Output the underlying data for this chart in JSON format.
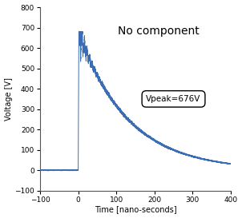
{
  "title": "No component",
  "xlabel": "Time [nano-seconds]",
  "ylabel": "Voltage [V]",
  "xlim": [
    -100,
    400
  ],
  "ylim": [
    -100,
    800
  ],
  "xticks": [
    -100,
    0,
    100,
    200,
    300,
    400
  ],
  "yticks": [
    -100,
    0,
    100,
    200,
    300,
    400,
    500,
    600,
    700,
    800
  ],
  "vpeak_label": "Vpeak=676V",
  "line_color": "#3b6db5",
  "background_color": "#ffffff",
  "peak_voltage": 676,
  "decay_tau": 130,
  "osc_amp1": 120,
  "osc_decay1": 8,
  "osc_freq1": 0.35,
  "osc_amp2": 60,
  "osc_decay2": 20,
  "osc_freq2": 0.15,
  "noise_amp": 6
}
